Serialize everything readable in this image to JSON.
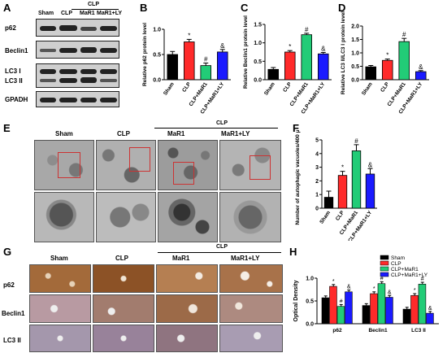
{
  "panel_letters": {
    "A": "A",
    "B": "B",
    "C": "C",
    "D": "D",
    "E": "E",
    "F": "F",
    "G": "G",
    "H": "H"
  },
  "panelA": {
    "group_header": "CLP",
    "lanes": [
      "Sham",
      "CLP",
      "MaR1",
      "MaR1+LY"
    ],
    "rows": [
      "p62",
      "Beclin1",
      "LC3 I",
      "LC3 II",
      "GPADH"
    ]
  },
  "panelE": {
    "group_header": "CLP",
    "cols": [
      "Sham",
      "CLP",
      "MaR1",
      "MaR1+LY"
    ]
  },
  "panelG": {
    "group_header": "CLP",
    "cols": [
      "Sham",
      "CLP",
      "MaR1",
      "MaR1+LY"
    ],
    "rows": [
      "p62",
      "Beclin1",
      "LC3 II"
    ]
  },
  "colors": {
    "sham": "#000000",
    "clp": "#ff2a2a",
    "mar1": "#22cc77",
    "mar1ly": "#1a1aff"
  },
  "chart_data": [
    {
      "id": "B",
      "type": "bar",
      "categories": [
        "Sham",
        "CLP",
        "CLP+MaR1",
        "CLP+MaR1+LY"
      ],
      "values": [
        0.5,
        0.75,
        0.28,
        0.55
      ],
      "errors": [
        0.06,
        0.05,
        0.05,
        0.05
      ],
      "sig": [
        "",
        "*",
        "#",
        "&"
      ],
      "ylabel": "Relative p62 protein level",
      "ylim": [
        0,
        1.0
      ],
      "yticks": [
        "0.0",
        "0.5",
        "1.0"
      ]
    },
    {
      "id": "C",
      "type": "bar",
      "categories": [
        "Sham",
        "CLP",
        "CLP+MaR1",
        "CLP+MaR1+LY"
      ],
      "values": [
        0.28,
        0.75,
        1.22,
        0.7
      ],
      "errors": [
        0.05,
        0.04,
        0.04,
        0.04
      ],
      "sig": [
        "",
        "*",
        "#",
        "&"
      ],
      "ylabel": "Relative Beclin1 protein level",
      "ylim": [
        0,
        1.5
      ],
      "yticks": [
        "0.0",
        "0.5",
        "1.0",
        "1.5"
      ]
    },
    {
      "id": "D",
      "type": "bar",
      "categories": [
        "Sham",
        "CLP",
        "CLP+MaR1",
        "CLP+MaR1+LY"
      ],
      "values": [
        0.48,
        0.72,
        1.42,
        0.3
      ],
      "errors": [
        0.05,
        0.05,
        0.12,
        0.04
      ],
      "sig": [
        "",
        "*",
        "#",
        "&"
      ],
      "ylabel": "Relative LC3 II/LC3 I protein level",
      "ylim": [
        0,
        2.0
      ],
      "yticks": [
        "0.0",
        "0.5",
        "1.0",
        "1.5",
        "2.0"
      ]
    },
    {
      "id": "F",
      "type": "bar",
      "categories": [
        "Sham",
        "CLP",
        "CLP+MaR1",
        "CLP+MaR1+LY"
      ],
      "values": [
        0.8,
        2.4,
        4.2,
        2.5
      ],
      "errors": [
        0.45,
        0.3,
        0.45,
        0.4
      ],
      "sig": [
        "",
        "*",
        "#",
        "&"
      ],
      "ylabel": "Number of autophagic vacuoles/400 μm²",
      "ylim": [
        0,
        5
      ],
      "yticks": [
        "0",
        "1",
        "2",
        "3",
        "4",
        "5"
      ]
    },
    {
      "id": "H",
      "type": "bar",
      "categories": [
        "p62",
        "Beclin1",
        "LC3 II"
      ],
      "ylabel": "Optical Density",
      "ylim": [
        0,
        1.0
      ],
      "yticks": [
        "0.0",
        "0.5",
        "1.0"
      ],
      "series": [
        {
          "name": "Sham",
          "values": [
            0.57,
            0.4,
            0.32
          ]
        },
        {
          "name": "CLP",
          "values": [
            0.82,
            0.66,
            0.62
          ]
        },
        {
          "name": "CLP+MaR1",
          "values": [
            0.38,
            0.88,
            0.87
          ]
        },
        {
          "name": "CLP+MaR1+LY",
          "values": [
            0.7,
            0.58,
            0.23
          ]
        }
      ],
      "sig": [
        [
          "",
          "*",
          "#",
          "&"
        ],
        [
          "",
          "*",
          "#",
          "&"
        ],
        [
          "",
          "*",
          "#",
          "&"
        ]
      ],
      "legend": "top-right"
    }
  ]
}
